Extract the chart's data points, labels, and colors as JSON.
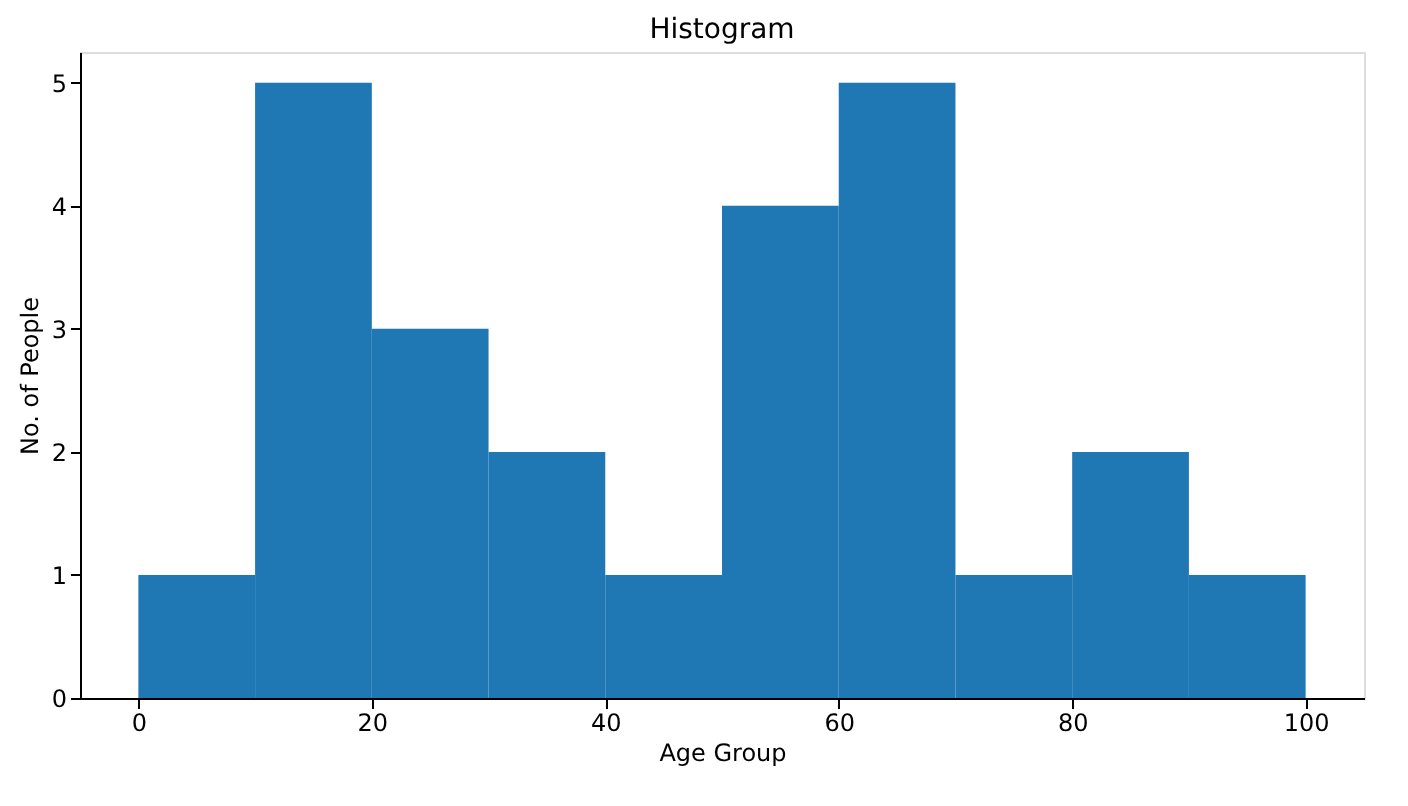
{
  "chart_data": {
    "type": "histogram",
    "title": "Histogram",
    "xlabel": "Age Group",
    "ylabel": "No. of People",
    "bins": [
      0,
      10,
      20,
      30,
      40,
      50,
      60,
      70,
      80,
      90,
      100
    ],
    "values": [
      1,
      5,
      3,
      2,
      1,
      4,
      5,
      1,
      2,
      1
    ],
    "color": "#1f77b4",
    "xlim": [
      -5,
      105
    ],
    "xticks": [
      0,
      20,
      40,
      60,
      80,
      100
    ],
    "ylim": [
      0,
      5.25
    ],
    "yticks": [
      0,
      1,
      2,
      3,
      4,
      5
    ],
    "grid": false
  }
}
